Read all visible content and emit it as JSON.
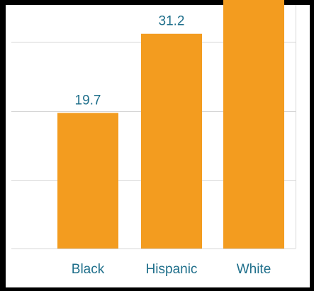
{
  "chart_data": {
    "type": "bar",
    "categories": [
      "Black",
      "Hispanic",
      "White"
    ],
    "values": [
      19.7,
      31.2,
      38.3
    ],
    "ylim": [
      0,
      50
    ],
    "grid": true,
    "colors": {
      "bar": "#f39c1f",
      "label": "#1f6f8b",
      "grid": "#d6d6d6"
    }
  }
}
